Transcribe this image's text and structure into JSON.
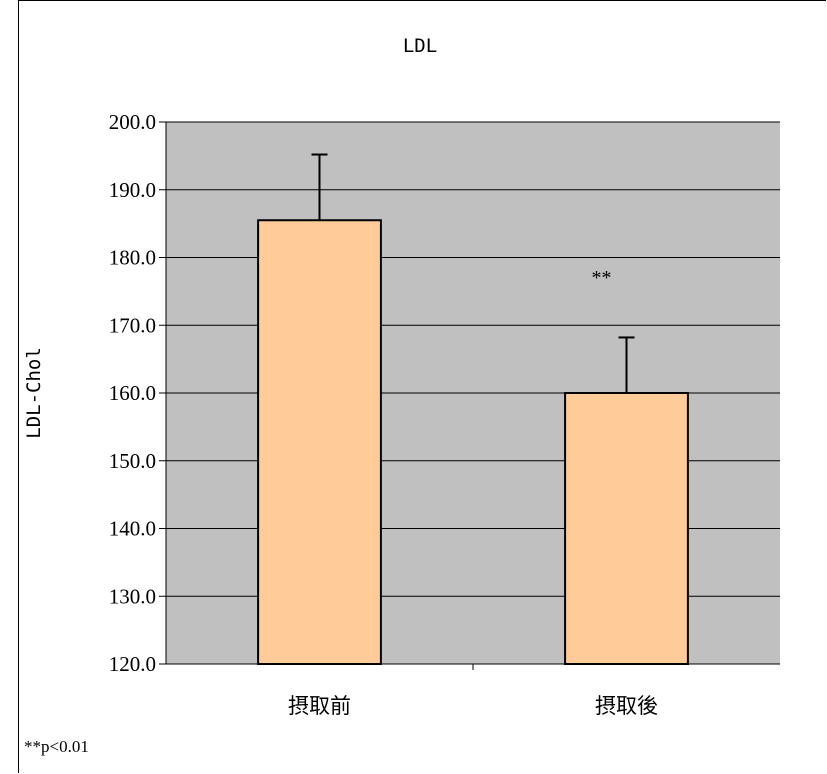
{
  "chart_data": {
    "type": "bar",
    "title": "LDL",
    "xlabel": "",
    "ylabel": "LDL-Chol",
    "categories": [
      "摂取前",
      "摂取後"
    ],
    "values": [
      185.5,
      160.0
    ],
    "error_upper": [
      195.2,
      168.2
    ],
    "ylim": [
      120.0,
      200.0
    ],
    "yticks": [
      "120.0",
      "130.0",
      "140.0",
      "150.0",
      "160.0",
      "170.0",
      "180.0",
      "190.0",
      "200.0"
    ],
    "grid": true,
    "annotations": [
      {
        "text": "**",
        "category": "摂取後"
      }
    ],
    "footnote": "**p<0.01"
  },
  "colors": {
    "plot_bg": "#c0c0c0",
    "bar_fill": "#ffcc99",
    "bar_stroke": "#000000",
    "grid": "#000000"
  }
}
